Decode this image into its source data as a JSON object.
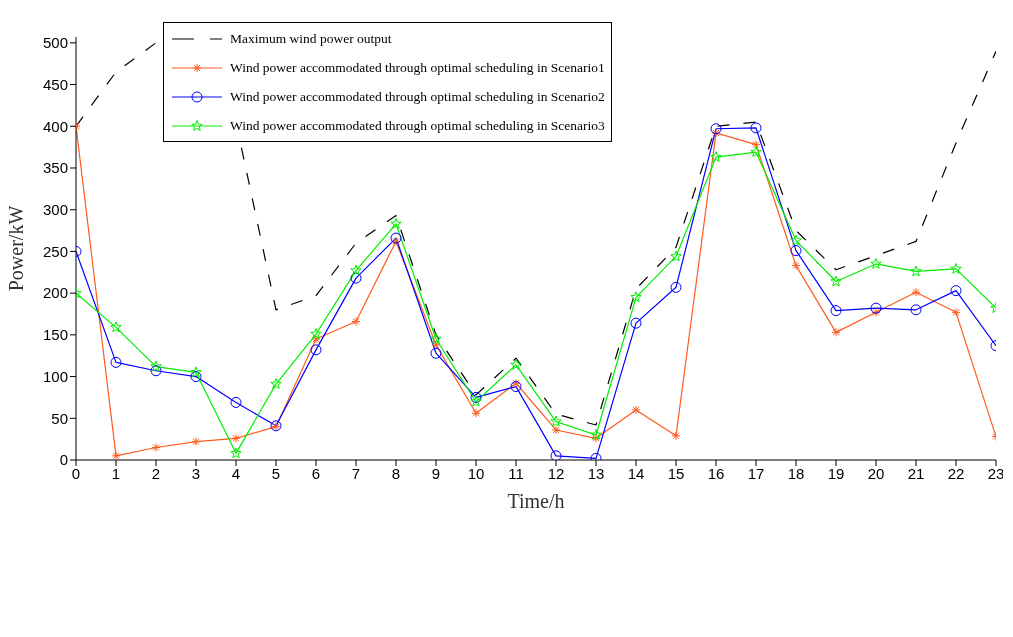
{
  "chart_data": {
    "type": "line",
    "xlabel": "Time/h",
    "ylabel": "Power/kW",
    "x": [
      0,
      1,
      2,
      3,
      4,
      5,
      6,
      7,
      8,
      9,
      10,
      11,
      12,
      13,
      14,
      15,
      16,
      17,
      18,
      19,
      20,
      21,
      22,
      23
    ],
    "xlim": [
      0,
      23
    ],
    "xticks": [
      0,
      1,
      2,
      3,
      4,
      5,
      6,
      7,
      8,
      9,
      10,
      11,
      12,
      13,
      14,
      15,
      16,
      17,
      18,
      19,
      20,
      21,
      22,
      23
    ],
    "ylim": [
      0,
      507
    ],
    "yticks": [
      0,
      50,
      100,
      150,
      200,
      250,
      300,
      350,
      400,
      450,
      500
    ],
    "grid": false,
    "legend": "top",
    "series": [
      {
        "name": "Maximum wind power output",
        "color": "#000000",
        "marker": "none",
        "line_style": "dashed",
        "values": [
          400,
          465,
          500,
          null,
          405,
          180,
          197,
          260,
          293,
          150,
          78,
          122,
          55,
          42,
          205,
          255,
          400,
          405,
          275,
          228,
          245,
          262,
          380,
          490
        ]
      },
      {
        "name": "Wind power accommodated through optimal scheduling in Scenario1",
        "color": "#ff5a1e",
        "marker": "cross",
        "line_style": "solid",
        "values": [
          400,
          5,
          15,
          22,
          26,
          40,
          145,
          166,
          262,
          138,
          56,
          92,
          36,
          26,
          60,
          29,
          392,
          378,
          233,
          153,
          177,
          201,
          177,
          28
        ]
      },
      {
        "name": "Wind power accommodated through optimal scheduling in Scenario2",
        "color": "#0000ff",
        "marker": "circle",
        "line_style": "solid",
        "values": [
          250,
          117,
          107,
          100,
          69,
          41,
          132,
          218,
          266,
          128,
          75,
          88,
          5,
          2,
          164,
          207,
          397,
          398,
          251,
          179,
          182,
          180,
          203,
          137
        ]
      },
      {
        "name": "Wind power accommodated through optimal scheduling in Scenario3",
        "color": "#00ee00",
        "marker": "star",
        "line_style": "solid",
        "values": [
          200,
          159,
          112,
          105,
          8,
          91,
          151,
          227,
          283,
          145,
          70,
          114,
          46,
          30,
          195,
          244,
          363,
          369,
          263,
          214,
          235,
          226,
          229,
          182
        ]
      }
    ]
  }
}
